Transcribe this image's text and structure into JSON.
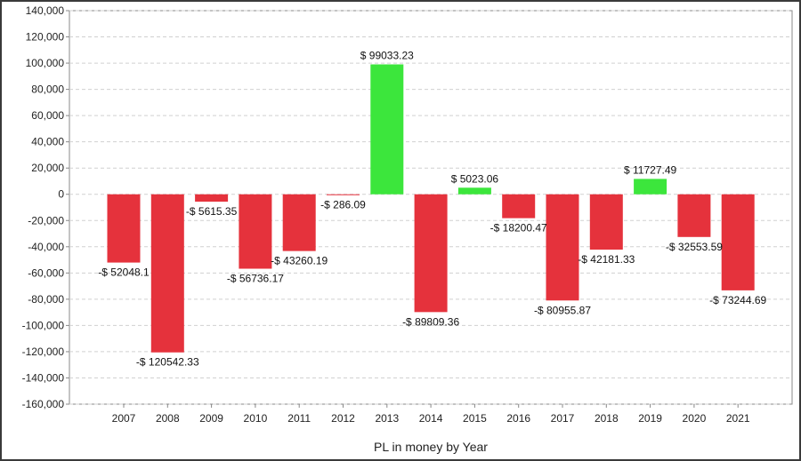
{
  "chart_data": {
    "type": "bar",
    "categories": [
      "2007",
      "2008",
      "2009",
      "2010",
      "2011",
      "2012",
      "2013",
      "2014",
      "2015",
      "2016",
      "2017",
      "2018",
      "2019",
      "2020",
      "2021"
    ],
    "values": [
      -52048.1,
      -120542.33,
      -5615.35,
      -56736.17,
      -43260.19,
      -286.09,
      99033.23,
      -89809.36,
      5023.06,
      -18200.47,
      -80955.87,
      -42181.33,
      11727.49,
      -32553.59,
      -73244.69
    ],
    "data_labels": [
      "-$ 52048.1",
      "-$ 120542.33",
      "-$ 5615.35",
      "-$ 56736.17",
      "-$ 43260.19",
      "-$ 286.09",
      "$ 99033.23",
      "-$ 89809.36",
      "$ 5023.06",
      "-$ 18200.47",
      "-$ 80955.87",
      "-$ 42181.33",
      "$ 11727.49",
      "-$ 32553.59",
      "-$ 73244.69"
    ],
    "title": "",
    "xlabel": "PL in money by Year",
    "ylabel": "",
    "ylim": [
      -160000,
      140000
    ],
    "yticks": [
      140000,
      120000,
      100000,
      80000,
      60000,
      40000,
      20000,
      0,
      -20000,
      -40000,
      -60000,
      -80000,
      -100000,
      -120000,
      -140000,
      -160000
    ],
    "ytick_labels": [
      "140,000",
      "120,000",
      "100,000",
      "80,000",
      "60,000",
      "40,000",
      "20,000",
      "0",
      "-20,000",
      "-40,000",
      "-60,000",
      "-80,000",
      "-100,000",
      "-120,000",
      "-140,000",
      "-160,000"
    ],
    "grid": true,
    "legend": "none",
    "colors": {
      "positive": "#3ce63c",
      "negative": "#e5323c",
      "grid": "#d0d0d0",
      "axis": "#888888"
    }
  }
}
